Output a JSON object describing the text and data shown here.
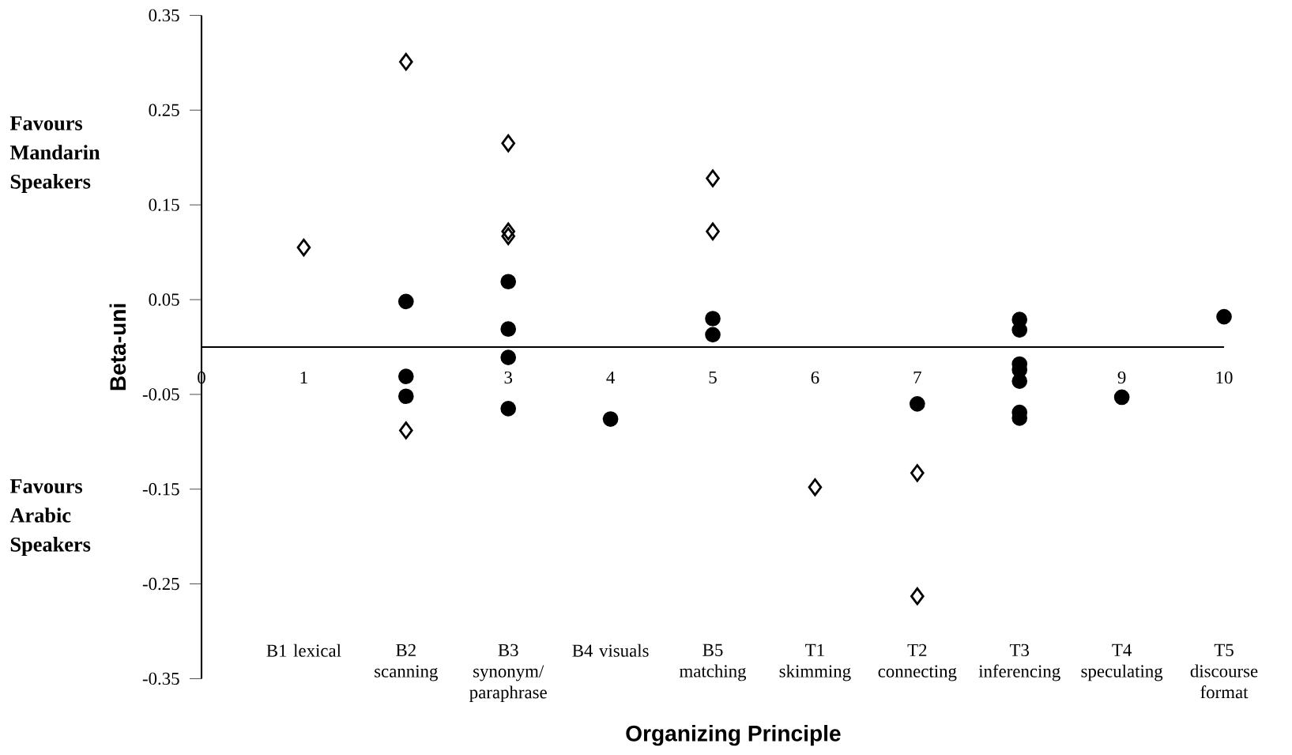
{
  "chart_data": {
    "type": "scatter",
    "xlabel": "Organizing Principle",
    "ylabel": "Beta-uni",
    "xlim": [
      0,
      10
    ],
    "xticks": [
      0,
      1,
      2,
      3,
      4,
      5,
      6,
      7,
      9,
      10
    ],
    "ylim": [
      -0.35,
      0.35
    ],
    "yticks": [
      -0.35,
      -0.25,
      -0.15,
      -0.05,
      0.05,
      0.15,
      0.25,
      0.35
    ],
    "grid": false,
    "series": [
      {
        "color": "#000000",
        "marker": "diamond",
        "x": [
          1,
          2,
          2,
          3,
          3,
          3,
          5,
          5,
          6,
          7,
          7
        ],
        "values": [
          0.105,
          0.301,
          -0.088,
          0.215,
          0.122,
          0.117,
          0.178,
          0.122,
          -0.148,
          -0.133,
          -0.263
        ]
      },
      {
        "color": "#000000",
        "marker": "circle",
        "x": [
          2,
          2,
          2,
          3,
          3,
          3,
          3,
          4,
          5,
          5,
          7,
          8,
          8,
          8,
          8,
          8,
          8,
          8,
          9,
          10
        ],
        "values": [
          0.048,
          -0.031,
          -0.052,
          0.069,
          0.019,
          -0.011,
          -0.065,
          -0.076,
          0.03,
          0.013,
          -0.06,
          0.029,
          0.018,
          -0.018,
          -0.024,
          -0.036,
          -0.069,
          -0.075,
          -0.053,
          0.032
        ]
      }
    ],
    "annotations": [
      "Favours Mandarin Speakers",
      "Favours Arabic Speakers",
      "B1 lexical",
      "B2 scanning",
      "B3 synonym/ paraphrase",
      "B4 visuals",
      "B5 matching",
      "T1 skimming",
      "T2 connecting",
      "T3 inferencing",
      "T4 speculating",
      "T5 discourse format"
    ]
  }
}
